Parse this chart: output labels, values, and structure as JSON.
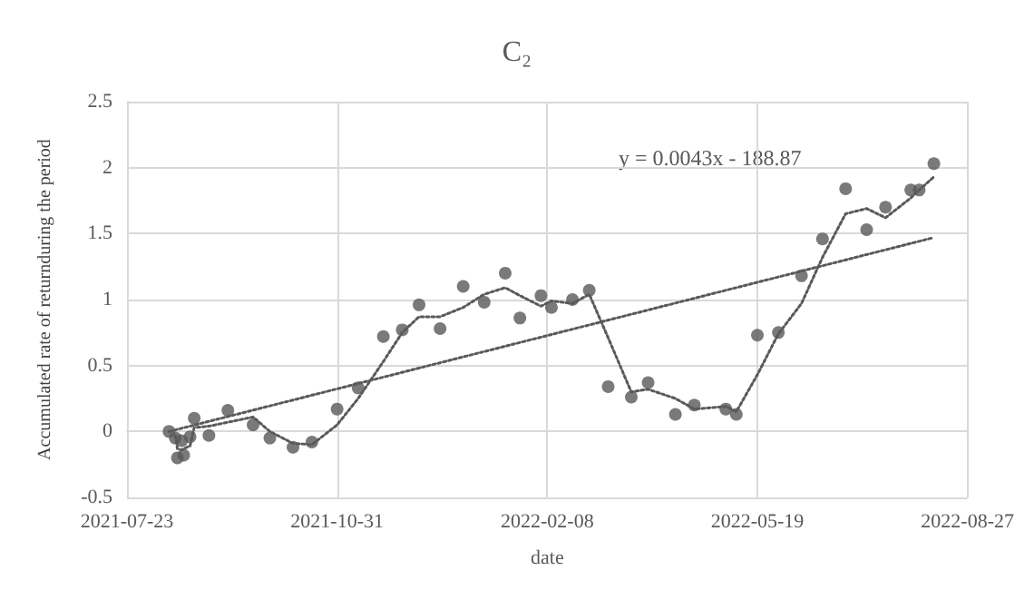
{
  "chart_data": {
    "type": "scatter",
    "title": "C₂",
    "xlabel": "date",
    "ylabel": "Accumulated rate of returnduring the period",
    "xlim": [
      "2021-07-23",
      "2022-08-27"
    ],
    "xticks": [
      "2021-07-23",
      "2021-10-31",
      "2022-02-08",
      "2022-05-19",
      "2022-08-27"
    ],
    "ylim": [
      -0.5,
      2.5
    ],
    "yticks": [
      -0.5,
      0,
      0.5,
      1,
      1.5,
      2,
      2.5
    ],
    "grid": true,
    "annotations": [
      "y = 0.0043x - 188.87"
    ],
    "series": [
      {
        "color": "#595959",
        "marker": "circle",
        "x": [
          "2021-08-12",
          "2021-08-15",
          "2021-08-16",
          "2021-08-18",
          "2021-08-19",
          "2021-08-22",
          "2021-08-24",
          "2021-08-31",
          "2021-09-09",
          "2021-09-21",
          "2021-09-29",
          "2021-10-10",
          "2021-10-19",
          "2021-10-31",
          "2021-11-10",
          "2021-11-22",
          "2021-12-01",
          "2021-12-09",
          "2021-12-19",
          "2021-12-30",
          "2022-01-09",
          "2022-01-19",
          "2022-01-26",
          "2022-02-05",
          "2022-02-10",
          "2022-02-20",
          "2022-02-28",
          "2022-03-09",
          "2022-03-20",
          "2022-03-28",
          "2022-04-10",
          "2022-04-19",
          "2022-05-04",
          "2022-05-09",
          "2022-05-19",
          "2022-05-29",
          "2022-06-09",
          "2022-06-19",
          "2022-06-30",
          "2022-07-10",
          "2022-07-19",
          "2022-07-31",
          "2022-08-04",
          "2022-08-11"
        ],
        "values": [
          0.0,
          -0.05,
          -0.2,
          -0.07,
          -0.18,
          -0.04,
          0.1,
          -0.03,
          0.16,
          0.05,
          -0.05,
          -0.12,
          -0.08,
          0.17,
          0.33,
          0.72,
          0.77,
          0.96,
          0.78,
          1.1,
          0.98,
          1.2,
          0.86,
          1.03,
          0.94,
          1.0,
          1.07,
          0.34,
          0.26,
          0.37,
          0.13,
          0.2,
          0.17,
          0.13,
          0.73,
          0.75,
          1.18,
          1.46,
          1.84,
          1.53,
          1.7,
          1.83,
          1.83,
          2.03
        ]
      },
      {
        "type": "line",
        "color": "#595959",
        "marker": "none",
        "line_style": "dotted",
        "x": [
          "2021-08-15",
          "2021-08-16",
          "2021-08-18",
          "2021-08-19",
          "2021-08-22",
          "2021-08-24",
          "2021-08-31",
          "2021-09-09",
          "2021-09-21",
          "2021-09-29",
          "2021-10-10",
          "2021-10-19",
          "2021-10-31",
          "2021-11-10",
          "2021-11-22",
          "2021-12-01",
          "2021-12-09",
          "2021-12-19",
          "2021-12-30",
          "2022-01-09",
          "2022-01-19",
          "2022-01-26",
          "2022-02-05",
          "2022-02-10",
          "2022-02-20",
          "2022-02-28",
          "2022-03-09",
          "2022-03-20",
          "2022-03-28",
          "2022-04-10",
          "2022-04-19",
          "2022-05-04",
          "2022-05-09",
          "2022-05-19",
          "2022-05-29",
          "2022-06-09",
          "2022-06-19",
          "2022-06-30",
          "2022-07-10",
          "2022-07-19",
          "2022-07-31",
          "2022-08-04",
          "2022-08-11"
        ],
        "values": [
          -0.03,
          -0.13,
          -0.14,
          -0.13,
          -0.11,
          0.03,
          0.04,
          0.07,
          0.11,
          0.0,
          -0.09,
          -0.1,
          0.05,
          0.25,
          0.53,
          0.75,
          0.87,
          0.87,
          0.94,
          1.04,
          1.09,
          1.03,
          0.95,
          0.99,
          0.97,
          1.04,
          0.71,
          0.3,
          0.32,
          0.25,
          0.17,
          0.19,
          0.15,
          0.43,
          0.74,
          0.97,
          1.32,
          1.65,
          1.69,
          1.62,
          1.77,
          1.83,
          1.93
        ]
      },
      {
        "type": "line",
        "color": "#595959",
        "marker": "none",
        "line_style": "dotted",
        "x": [
          "2021-08-12",
          "2022-08-11"
        ],
        "values": [
          0.0,
          1.47
        ]
      }
    ]
  }
}
